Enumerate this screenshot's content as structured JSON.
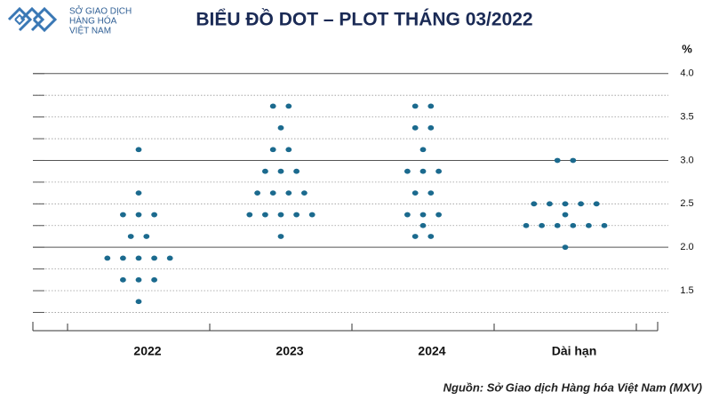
{
  "logo": {
    "lines": [
      "SỞ GIAO DỊCH",
      "HÀNG HÓA",
      "VIỆT NAM"
    ]
  },
  "chart_data": {
    "type": "dot",
    "title": "BIỂU ĐỒ DOT – PLOT THÁNG 03/2022",
    "y_unit": "%",
    "categories": [
      "2022",
      "2023",
      "2024",
      "Dài hạn"
    ],
    "values": [
      [
        3.125,
        2.625,
        2.375,
        2.375,
        2.375,
        2.125,
        2.125,
        1.875,
        1.875,
        1.875,
        1.875,
        1.875,
        1.625,
        1.625,
        1.625,
        1.375
      ],
      [
        3.625,
        3.625,
        3.375,
        3.125,
        3.125,
        2.875,
        2.875,
        2.875,
        2.625,
        2.625,
        2.625,
        2.625,
        2.375,
        2.375,
        2.375,
        2.375,
        2.375,
        2.125
      ],
      [
        3.625,
        3.625,
        3.375,
        3.375,
        3.125,
        2.875,
        2.875,
        2.875,
        2.625,
        2.625,
        2.375,
        2.375,
        2.375,
        2.25,
        2.125,
        2.125
      ],
      [
        3.0,
        3.0,
        2.5,
        2.5,
        2.5,
        2.5,
        2.5,
        2.375,
        2.25,
        2.25,
        2.25,
        2.25,
        2.25,
        2.25,
        2.0
      ]
    ],
    "color": "#1b6a8e",
    "ylim": [
      1.05,
      4.1
    ],
    "yticks": [
      {
        "value": 1.5,
        "label": "1.5"
      },
      {
        "value": 2,
        "label": "2.0"
      },
      2.5,
      {
        "value": 3,
        "label": "3.0"
      },
      3.5,
      {
        "value": 4,
        "label": "4.0"
      }
    ],
    "minor_yticks": [
      1.25,
      1.5,
      1.75,
      2,
      2.25,
      2.5,
      2.75,
      3,
      3.25,
      3.5,
      3.75,
      4
    ],
    "grid": true,
    "source": "Nguồn: Sở Giao dịch Hàng hóa Việt Nam (MXV)"
  }
}
